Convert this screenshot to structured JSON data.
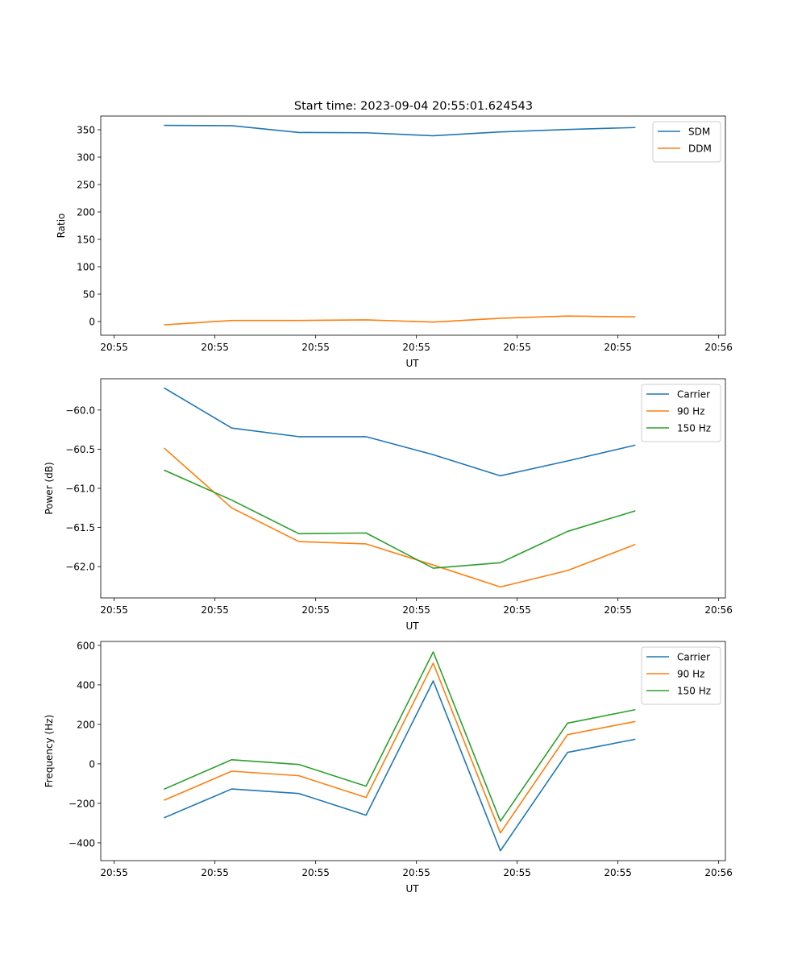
{
  "figure": {
    "title": "Start time: 2023-09-04 20:55:01.624543"
  },
  "chart_data": [
    {
      "type": "line",
      "title": "Start time: 2023-09-04 20:55:01.624543",
      "xlabel": "UT",
      "ylabel": "Ratio",
      "xlim": [
        -0.2,
        9.1
      ],
      "ylim": [
        -25,
        375
      ],
      "x": [
        0.75,
        1.75,
        2.75,
        3.75,
        4.75,
        5.75,
        6.75,
        7.75
      ],
      "xticks": [
        0,
        1.5,
        3,
        4.5,
        6,
        7.5,
        9
      ],
      "xtick_labels": [
        "20:55",
        "20:55",
        "20:55",
        "20:55",
        "20:55",
        "20:55",
        "20:56"
      ],
      "yticks": [
        0,
        50,
        100,
        150,
        200,
        250,
        300,
        350
      ],
      "ytick_labels": [
        "0",
        "50",
        "100",
        "150",
        "200",
        "250",
        "300",
        "350"
      ],
      "legend_position": "top-right",
      "series": [
        {
          "name": "SDM",
          "color": "#1f77b4",
          "values": [
            358,
            357.5,
            345,
            344.5,
            339,
            346,
            350.5,
            354
          ]
        },
        {
          "name": "DDM",
          "color": "#ff7f0e",
          "values": [
            -6,
            2,
            2,
            3,
            -1,
            6,
            10,
            8.5
          ]
        }
      ]
    },
    {
      "type": "line",
      "title": "",
      "xlabel": "UT",
      "ylabel": "Power (dB)",
      "xlim": [
        -0.2,
        9.1
      ],
      "ylim": [
        -62.4,
        -59.6
      ],
      "x": [
        0.75,
        1.75,
        2.75,
        3.75,
        4.75,
        5.75,
        6.75,
        7.75
      ],
      "xticks": [
        0,
        1.5,
        3,
        4.5,
        6,
        7.5,
        9
      ],
      "xtick_labels": [
        "20:55",
        "20:55",
        "20:55",
        "20:55",
        "20:55",
        "20:55",
        "20:56"
      ],
      "yticks": [
        -60.0,
        -60.5,
        -61.0,
        -61.5,
        -62.0
      ],
      "ytick_labels": [
        "−60.0",
        "−60.5",
        "−61.0",
        "−61.5",
        "−62.0"
      ],
      "legend_position": "top-right",
      "series": [
        {
          "name": "Carrier",
          "color": "#1f77b4",
          "values": [
            -59.72,
            -60.23,
            -60.34,
            -60.34,
            -60.57,
            -60.84,
            -60.65,
            -60.45
          ]
        },
        {
          "name": "90 Hz",
          "color": "#ff7f0e",
          "values": [
            -60.49,
            -61.25,
            -61.68,
            -61.71,
            -61.98,
            -62.26,
            -62.05,
            -61.72
          ]
        },
        {
          "name": "150 Hz",
          "color": "#2ca02c",
          "values": [
            -60.77,
            -61.15,
            -61.58,
            -61.57,
            -62.02,
            -61.95,
            -61.55,
            -61.29
          ]
        }
      ]
    },
    {
      "type": "line",
      "title": "",
      "xlabel": "UT",
      "ylabel": "Frequency (Hz)",
      "xlim": [
        -0.2,
        9.1
      ],
      "ylim": [
        -490,
        620
      ],
      "x": [
        0.75,
        1.75,
        2.75,
        3.75,
        4.75,
        5.75,
        6.75,
        7.75
      ],
      "xticks": [
        0,
        1.5,
        3,
        4.5,
        6,
        7.5,
        9
      ],
      "xtick_labels": [
        "20:55",
        "20:55",
        "20:55",
        "20:55",
        "20:55",
        "20:55",
        "20:56"
      ],
      "yticks": [
        600,
        400,
        200,
        0,
        -200,
        -400
      ],
      "ytick_labels": [
        "600",
        "400",
        "200",
        "0",
        "−200",
        "−400"
      ],
      "legend_position": "top-right",
      "series": [
        {
          "name": "Carrier",
          "color": "#1f77b4",
          "values": [
            -272,
            -127,
            -150,
            -260,
            420,
            -440,
            58,
            124
          ]
        },
        {
          "name": "90 Hz",
          "color": "#ff7f0e",
          "values": [
            -183,
            -37,
            -60,
            -170,
            510,
            -350,
            148,
            214
          ]
        },
        {
          "name": "150 Hz",
          "color": "#2ca02c",
          "values": [
            -127,
            21,
            -3,
            -113,
            567,
            -290,
            206,
            274
          ]
        }
      ]
    }
  ]
}
